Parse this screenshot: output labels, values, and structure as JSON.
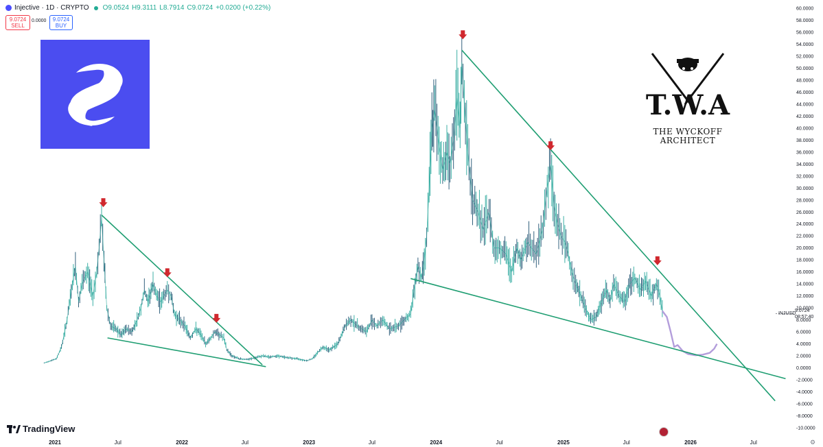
{
  "header": {
    "symbol": "Injective · 1D · CRYPTO",
    "open": "O9.0524",
    "high": "H9.3111",
    "low": "L8.7914",
    "close": "C9.0724",
    "change": "+0.0200 (+0.22%)"
  },
  "trade": {
    "sell_price": "9.0724",
    "sell_label": "SELL",
    "spread": "0.0000",
    "buy_price": "9.0724",
    "buy_label": "BUY"
  },
  "branding": {
    "twa_letters": "T.W.A",
    "twa_name_line1": "THE WYCKOFF",
    "twa_name_line2": "ARCHITECT",
    "tradingview": "TradingView"
  },
  "price_marker": {
    "symbol": "INJUSD",
    "price": "9.0724",
    "countdown": "08:57:40"
  },
  "colors": {
    "candle": "#26a69a",
    "candle_dark": "#1b4f6e",
    "projection": "#b39ddb",
    "trendline": "#1f9e72",
    "arrow": "#d0282e",
    "injective_bg": "#4b4df0"
  },
  "chart_data": {
    "type": "line",
    "ylim": [
      -10,
      60
    ],
    "y_ticks": [
      "60.0000",
      "58.0000",
      "56.0000",
      "54.0000",
      "52.0000",
      "50.0000",
      "48.0000",
      "46.0000",
      "44.0000",
      "42.0000",
      "40.0000",
      "38.0000",
      "36.0000",
      "34.0000",
      "32.0000",
      "30.0000",
      "28.0000",
      "26.0000",
      "24.0000",
      "22.0000",
      "20.0000",
      "18.0000",
      "16.0000",
      "14.0000",
      "12.0000",
      "10.0000",
      "8.0000",
      "6.0000",
      "4.0000",
      "2.0000",
      "0.0000",
      "-2.0000",
      "-4.0000",
      "-6.0000",
      "-8.0000",
      "-10.0000"
    ],
    "x_ticks": [
      "2021",
      "Jul",
      "2022",
      "Jul",
      "2023",
      "Jul",
      "2024",
      "Jul",
      "2025",
      "Jul",
      "2026",
      "Jul"
    ],
    "series": [
      {
        "values": [
          [
            "2020-12-01",
            0.8
          ],
          [
            "2020-12-20",
            1.2
          ],
          [
            "2021-01-05",
            1.5
          ],
          [
            "2021-01-20",
            3.5
          ],
          [
            "2021-02-05",
            8
          ],
          [
            "2021-02-20",
            14
          ],
          [
            "2021-03-01",
            17
          ],
          [
            "2021-03-10",
            11
          ],
          [
            "2021-03-20",
            14
          ],
          [
            "2021-04-05",
            16
          ],
          [
            "2021-04-20",
            12
          ],
          [
            "2021-05-01",
            16
          ],
          [
            "2021-05-08",
            20
          ],
          [
            "2021-05-15",
            25
          ],
          [
            "2021-05-22",
            18
          ],
          [
            "2021-05-30",
            10
          ],
          [
            "2021-06-10",
            7
          ],
          [
            "2021-06-25",
            6.5
          ],
          [
            "2021-07-10",
            5.5
          ],
          [
            "2021-07-25",
            6.5
          ],
          [
            "2021-08-10",
            6
          ],
          [
            "2021-08-25",
            8
          ],
          [
            "2021-09-05",
            10
          ],
          [
            "2021-09-15",
            13
          ],
          [
            "2021-09-25",
            11
          ],
          [
            "2021-10-10",
            14
          ],
          [
            "2021-10-20",
            12
          ],
          [
            "2021-11-01",
            11
          ],
          [
            "2021-11-10",
            12
          ],
          [
            "2021-11-20",
            13
          ],
          [
            "2021-12-01",
            12
          ],
          [
            "2021-12-10",
            9
          ],
          [
            "2021-12-25",
            8
          ],
          [
            "2022-01-10",
            7
          ],
          [
            "2022-01-25",
            5
          ],
          [
            "2022-02-10",
            6.5
          ],
          [
            "2022-02-25",
            5.5
          ],
          [
            "2022-03-10",
            4
          ],
          [
            "2022-03-25",
            5
          ],
          [
            "2022-04-05",
            6
          ],
          [
            "2022-04-20",
            5.5
          ],
          [
            "2022-05-01",
            5
          ],
          [
            "2022-05-10",
            3
          ],
          [
            "2022-05-25",
            2
          ],
          [
            "2022-06-15",
            1.5
          ],
          [
            "2022-07-10",
            1.4
          ],
          [
            "2022-08-01",
            1.7
          ],
          [
            "2022-08-20",
            2
          ],
          [
            "2022-09-10",
            1.8
          ],
          [
            "2022-10-01",
            2
          ],
          [
            "2022-11-01",
            1.7
          ],
          [
            "2022-12-01",
            1.5
          ],
          [
            "2022-12-25",
            1.2
          ],
          [
            "2023-01-10",
            1.5
          ],
          [
            "2023-01-25",
            2.5
          ],
          [
            "2023-02-10",
            3.5
          ],
          [
            "2023-03-01",
            3
          ],
          [
            "2023-03-25",
            4
          ],
          [
            "2023-04-15",
            7
          ],
          [
            "2023-05-01",
            8
          ],
          [
            "2023-05-20",
            7
          ],
          [
            "2023-06-15",
            6
          ],
          [
            "2023-07-01",
            8
          ],
          [
            "2023-07-15",
            7
          ],
          [
            "2023-08-01",
            8
          ],
          [
            "2023-08-20",
            6.5
          ],
          [
            "2023-09-15",
            7
          ],
          [
            "2023-10-01",
            8
          ],
          [
            "2023-10-20",
            9
          ],
          [
            "2023-11-01",
            14
          ],
          [
            "2023-11-10",
            17
          ],
          [
            "2023-11-20",
            15
          ],
          [
            "2023-11-28",
            18
          ],
          [
            "2023-12-05",
            22
          ],
          [
            "2023-12-12",
            30
          ],
          [
            "2023-12-20",
            40
          ],
          [
            "2023-12-28",
            43
          ],
          [
            "2024-01-10",
            37
          ],
          [
            "2024-01-20",
            33
          ],
          [
            "2024-02-01",
            36
          ],
          [
            "2024-02-10",
            34
          ],
          [
            "2024-02-20",
            38
          ],
          [
            "2024-03-01",
            45
          ],
          [
            "2024-03-10",
            40
          ],
          [
            "2024-03-15",
            51
          ],
          [
            "2024-03-22",
            44
          ],
          [
            "2024-04-01",
            36
          ],
          [
            "2024-04-15",
            28
          ],
          [
            "2024-05-01",
            26
          ],
          [
            "2024-05-15",
            23
          ],
          [
            "2024-06-01",
            26
          ],
          [
            "2024-06-15",
            20
          ],
          [
            "2024-07-01",
            20
          ],
          [
            "2024-07-20",
            19
          ],
          [
            "2024-08-05",
            16
          ],
          [
            "2024-08-20",
            20
          ],
          [
            "2024-09-01",
            18
          ],
          [
            "2024-09-20",
            21
          ],
          [
            "2024-10-01",
            20
          ],
          [
            "2024-10-15",
            19
          ],
          [
            "2024-11-01",
            23
          ],
          [
            "2024-11-15",
            30
          ],
          [
            "2024-11-25",
            34
          ],
          [
            "2024-12-05",
            27
          ],
          [
            "2024-12-15",
            24
          ],
          [
            "2024-12-25",
            22
          ],
          [
            "2025-01-05",
            21
          ],
          [
            "2025-01-15",
            19
          ],
          [
            "2025-01-25",
            16
          ],
          [
            "2025-02-05",
            14
          ],
          [
            "2025-02-20",
            12
          ],
          [
            "2025-03-05",
            10
          ],
          [
            "2025-03-20",
            8
          ],
          [
            "2025-04-05",
            8.5
          ],
          [
            "2025-04-20",
            11
          ],
          [
            "2025-05-05",
            13
          ],
          [
            "2025-05-15",
            11
          ],
          [
            "2025-05-25",
            14
          ],
          [
            "2025-06-10",
            12
          ],
          [
            "2025-06-25",
            11
          ],
          [
            "2025-07-10",
            14
          ],
          [
            "2025-07-25",
            15
          ],
          [
            "2025-08-10",
            13
          ],
          [
            "2025-08-25",
            14.5
          ],
          [
            "2025-09-10",
            12
          ],
          [
            "2025-09-25",
            14
          ],
          [
            "2025-10-05",
            12
          ],
          [
            "2025-10-12",
            9.5
          ]
        ]
      },
      {
        "values": [
          [
            "2025-10-12",
            9.5
          ],
          [
            "2025-10-25",
            8.5
          ],
          [
            "2025-11-05",
            6
          ],
          [
            "2025-11-15",
            3.5
          ],
          [
            "2025-11-25",
            3.8
          ],
          [
            "2025-12-10",
            2.8
          ],
          [
            "2025-12-25",
            2.3
          ],
          [
            "2026-01-15",
            2.1
          ],
          [
            "2026-02-05",
            2.2
          ],
          [
            "2026-02-25",
            2.5
          ],
          [
            "2026-03-10",
            3.2
          ],
          [
            "2026-03-18",
            4
          ]
        ]
      }
    ],
    "trendlines": [
      {
        "from": [
          "2021-05-15",
          25.5
        ],
        "to": [
          "2022-08-20",
          0.5
        ]
      },
      {
        "from": [
          "2021-06-01",
          5
        ],
        "to": [
          "2022-08-30",
          0.2
        ]
      },
      {
        "from": [
          "2024-03-15",
          53
        ],
        "to": [
          "2026-09-01",
          -5.5
        ]
      },
      {
        "from": [
          "2023-10-20",
          14.9
        ],
        "to": [
          "2026-10-01",
          -1.8
        ]
      }
    ],
    "arrows": [
      [
        "2021-05-20",
        27.5
      ],
      [
        "2021-11-20",
        15.8
      ],
      [
        "2022-04-10",
        8.2
      ],
      [
        "2024-03-18",
        55.5
      ],
      [
        "2024-11-25",
        37
      ],
      [
        "2025-09-28",
        17.8
      ]
    ]
  }
}
